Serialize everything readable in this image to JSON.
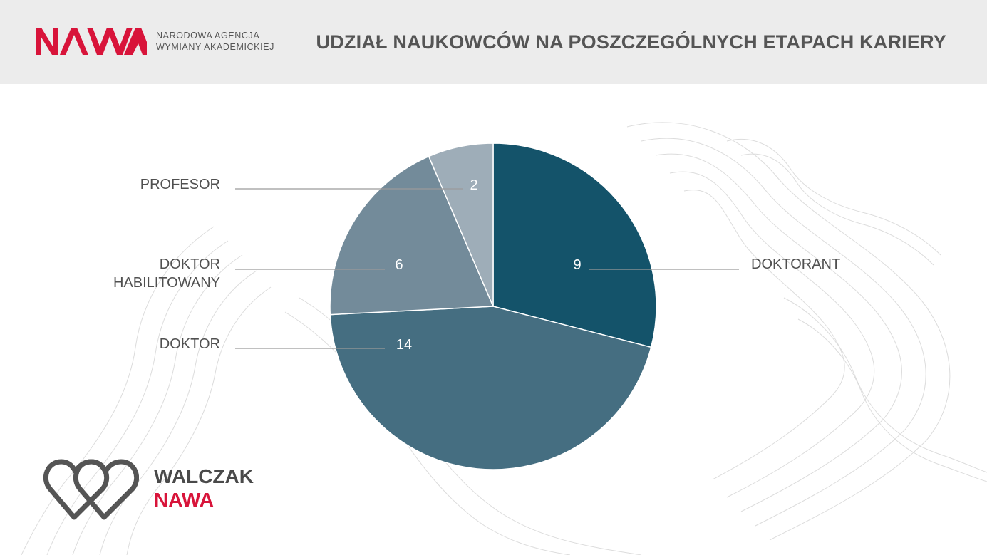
{
  "header": {
    "logo_text": "NAWA",
    "agency_line1": "NARODOWA AGENCJA",
    "agency_line2": "WYMIANY AKADEMICKIEJ",
    "title": "UDZIAŁ NAUKOWCÓW NA POSZCZEGÓLNYCH ETAPACH KARIERY"
  },
  "footer": {
    "icon": "double-heart-logo-icon",
    "line1": "WALCZAK",
    "line2": "NAWA"
  },
  "colors": {
    "brand_red": "#d8143a",
    "header_bg": "#ececec"
  },
  "chart_data": {
    "type": "pie",
    "title": "UDZIAŁ NAUKOWCÓW NA POSZCZEGÓLNYCH ETAPACH KARIERY",
    "start_angle_deg": 0,
    "direction": "clockwise",
    "slices": [
      {
        "label": "DOKTORANT",
        "value": 9,
        "color": "#14536a"
      },
      {
        "label": "DOKTOR",
        "value": 14,
        "color": "#456e81"
      },
      {
        "label": "DOKTOR HABILITOWANY",
        "label_lines": [
          "DOKTOR",
          "HABILITOWANY"
        ],
        "value": 6,
        "color": "#738b9a"
      },
      {
        "label": "PROFESOR",
        "value": 2,
        "color": "#9eadb8"
      }
    ]
  }
}
